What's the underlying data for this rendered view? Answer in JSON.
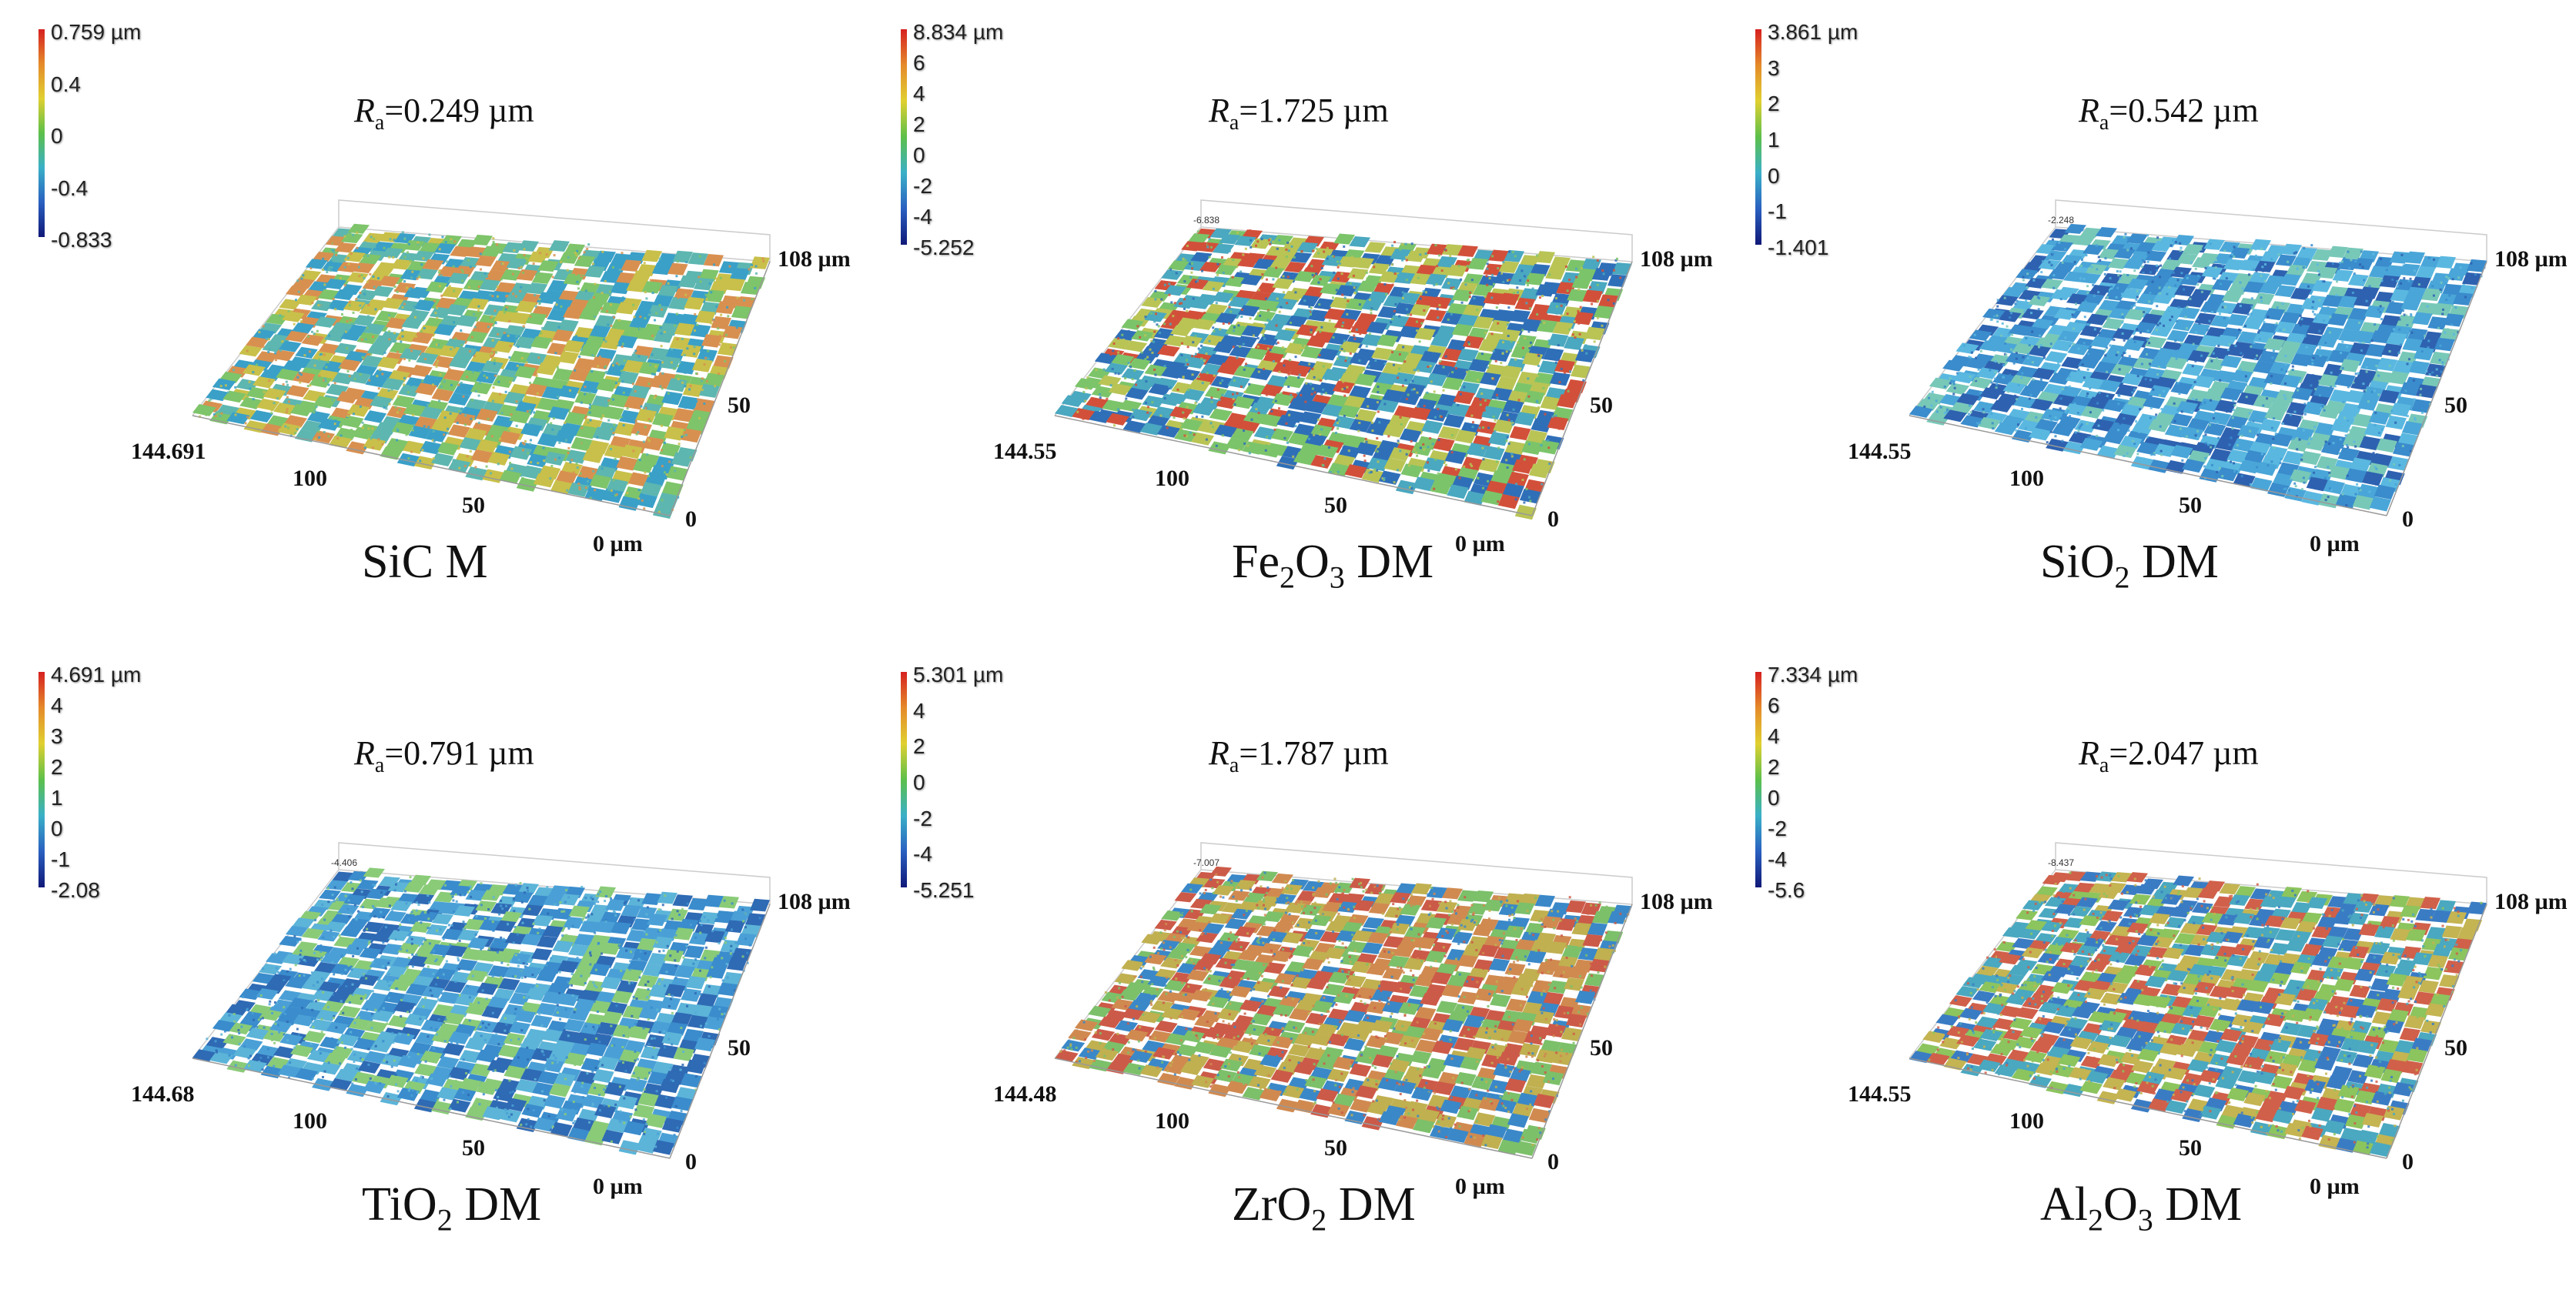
{
  "panels": [
    {
      "colorbar_ticks": [
        "0.759 µm",
        "0.4",
        "0",
        "-0.4",
        "-0.833"
      ],
      "ra_symbol": "R",
      "ra_sub": "a",
      "ra_value": "=0.249  µm",
      "caption_pre": "SiC M",
      "caption_parts": [],
      "z_min_label": "",
      "axis": {
        "corner": "144.691",
        "x100": "100",
        "x50": "50",
        "origin": "0 µm",
        "y0": "0",
        "y50": "50",
        "y108": "108 µm"
      },
      "surface_colors": [
        "#3aa0c8",
        "#7ec46a",
        "#c8c04a",
        "#d89050",
        "#5db6b0"
      ]
    },
    {
      "colorbar_ticks": [
        "8.834 µm",
        "6",
        "4",
        "2",
        "0",
        "-2",
        "-4",
        "-5.252"
      ],
      "ra_symbol": "R",
      "ra_sub": "a",
      "ra_value": "=1.725  µm",
      "caption_parts": [
        [
          "Fe",
          "2"
        ],
        [
          "O",
          "3"
        ]
      ],
      "caption_post": " DM",
      "z_min_label": "-6.838",
      "axis": {
        "corner": "144.55",
        "x100": "100",
        "x50": "50",
        "origin": "0 µm",
        "y0": "0",
        "y50": "50",
        "y108": "108 µm"
      },
      "surface_colors": [
        "#2f6fb8",
        "#4aa8c0",
        "#7cc46a",
        "#b9c455",
        "#d2503a"
      ]
    },
    {
      "colorbar_ticks": [
        "3.861 µm",
        "3",
        "2",
        "1",
        "0",
        "-1",
        "-1.401"
      ],
      "ra_symbol": "R",
      "ra_sub": "a",
      "ra_value": "=0.542  µm",
      "caption_parts": [
        [
          "SiO",
          "2"
        ]
      ],
      "caption_post": " DM",
      "z_min_label": "-2.248",
      "axis": {
        "corner": "144.55",
        "x100": "100",
        "x50": "50",
        "origin": "0 µm",
        "y0": "0",
        "y50": "50",
        "y108": "108 µm"
      },
      "surface_colors": [
        "#3a8ccc",
        "#4aa6d8",
        "#5ab8e0",
        "#78c8b8",
        "#2e62b0"
      ]
    },
    {
      "colorbar_ticks": [
        "4.691 µm",
        "4",
        "3",
        "2",
        "1",
        "0",
        "-1",
        "-2.08"
      ],
      "ra_symbol": "R",
      "ra_sub": "a",
      "ra_value": "=0.791  µm",
      "caption_parts": [
        [
          "TiO",
          "2"
        ]
      ],
      "caption_post": " DM",
      "z_min_label": "-4.406",
      "axis": {
        "corner": "144.68",
        "x100": "100",
        "x50": "50",
        "origin": "0 µm",
        "y0": "0",
        "y50": "50",
        "y108": "108 µm"
      },
      "surface_colors": [
        "#3a8ccc",
        "#4aa0d6",
        "#5cb4d8",
        "#8acb78",
        "#2f6ab4"
      ]
    },
    {
      "colorbar_ticks": [
        "5.301 µm",
        "4",
        "2",
        "0",
        "-2",
        "-4",
        "-5.251"
      ],
      "ra_symbol": "R",
      "ra_sub": "a",
      "ra_value": "=1.787  µm",
      "caption_parts": [
        [
          "ZrO",
          "2"
        ]
      ],
      "caption_post": " DM",
      "z_min_label": "-7.007",
      "axis": {
        "corner": "144.48",
        "x100": "100",
        "x50": "50",
        "origin": "0 µm",
        "y0": "0",
        "y50": "50",
        "y108": "108 µm"
      },
      "surface_colors": [
        "#c0b050",
        "#d08a50",
        "#7cc06a",
        "#3a88c8",
        "#cc5a48"
      ]
    },
    {
      "colorbar_ticks": [
        "7.334 µm",
        "6",
        "4",
        "2",
        "0",
        "-2",
        "-4",
        "-5.6"
      ],
      "ra_symbol": "R",
      "ra_sub": "a",
      "ra_value": "=2.047  µm",
      "caption_parts": [
        [
          "Al",
          "2"
        ],
        [
          "O",
          "3"
        ]
      ],
      "caption_post": " DM",
      "z_min_label": "-8.437",
      "axis": {
        "corner": "144.55",
        "x100": "100",
        "x50": "50",
        "origin": "0 µm",
        "y0": "0",
        "y50": "50",
        "y108": "108 µm"
      },
      "surface_colors": [
        "#4aa8c0",
        "#8cc45e",
        "#c4b452",
        "#3a7cc4",
        "#d0604a"
      ]
    }
  ]
}
